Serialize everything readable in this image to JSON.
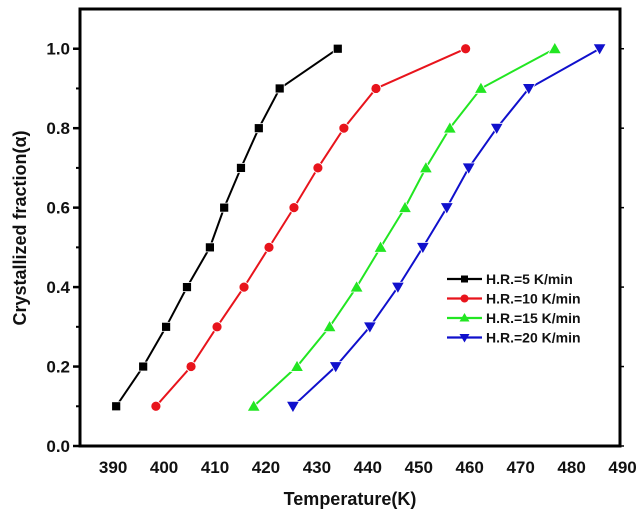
{
  "chart_data": {
    "type": "line",
    "title": "",
    "xlabel": "Temperature(K)",
    "ylabel": "Crystallized fraction(α)",
    "xlim": [
      383.5,
      489.5
    ],
    "ylim": [
      0.0,
      1.1
    ],
    "x_ticks": [
      390,
      400,
      410,
      420,
      430,
      440,
      450,
      460,
      470,
      480,
      490
    ],
    "x_tick_labels": [
      "390",
      "400",
      "410",
      "420",
      "430",
      "440",
      "450",
      "460",
      "470",
      "480",
      "490"
    ],
    "y_ticks": [
      0.0,
      0.2,
      0.4,
      0.6,
      0.8,
      1.0
    ],
    "y_tick_labels": [
      "0.0",
      "0.2",
      "0.4",
      "0.6",
      "0.8",
      "1.0"
    ],
    "y_minor_ticks": [
      0.1,
      0.3,
      0.5,
      0.7,
      0.9
    ],
    "grid": false,
    "legend_position": "center-right",
    "series": [
      {
        "name": "H.R.=5 K/min",
        "color": "#000000",
        "marker": "square",
        "x": [
          390.6,
          395.9,
          400.4,
          404.5,
          409.0,
          411.8,
          415.1,
          418.6,
          422.7,
          434.1
        ],
        "y": [
          0.1,
          0.2,
          0.3,
          0.4,
          0.5,
          0.6,
          0.7,
          0.8,
          0.9,
          1.0
        ]
      },
      {
        "name": "H.R.=10 K/min",
        "color": "#e8141c",
        "marker": "circle",
        "x": [
          398.4,
          405.3,
          410.4,
          415.7,
          420.6,
          425.5,
          430.2,
          435.3,
          441.6,
          459.2
        ],
        "y": [
          0.1,
          0.2,
          0.3,
          0.4,
          0.5,
          0.6,
          0.7,
          0.8,
          0.9,
          1.0
        ]
      },
      {
        "name": "H.R.=15 K/min",
        "color": "#22e622",
        "marker": "triangle-up",
        "x": [
          417.6,
          426.1,
          432.5,
          437.8,
          442.5,
          447.3,
          451.4,
          456.1,
          462.2,
          476.7
        ],
        "y": [
          0.1,
          0.2,
          0.3,
          0.4,
          0.5,
          0.6,
          0.7,
          0.8,
          0.9,
          1.0
        ]
      },
      {
        "name": "H.R.=20 K/min",
        "color": "#1010cc",
        "marker": "triangle-down",
        "x": [
          425.3,
          433.7,
          440.4,
          445.9,
          450.8,
          455.5,
          459.8,
          465.3,
          471.6,
          485.5
        ],
        "y": [
          0.1,
          0.2,
          0.3,
          0.4,
          0.5,
          0.6,
          0.7,
          0.8,
          0.9,
          1.0
        ]
      }
    ]
  }
}
